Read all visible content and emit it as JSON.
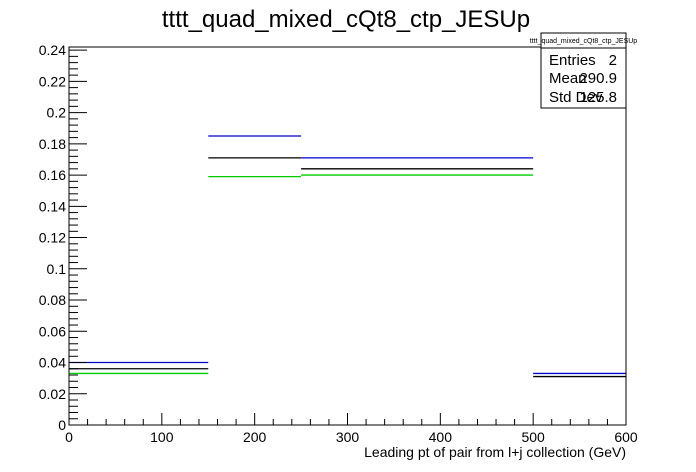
{
  "chart_data": {
    "type": "histogram",
    "title": "tttt_quad_mixed_cQt8_ctp_JESUp",
    "xlabel": "Leading pt of pair from l+j collection (GeV)",
    "ylabel": "",
    "xlim": [
      0,
      600
    ],
    "ylim": [
      0,
      0.242
    ],
    "x_ticks": [
      0,
      100,
      200,
      300,
      400,
      500,
      600
    ],
    "x_tick_labels": [
      "0",
      "100",
      "200",
      "300",
      "400",
      "500",
      "600"
    ],
    "y_ticks": [
      0,
      0.02,
      0.04,
      0.06,
      0.08,
      0.1,
      0.12,
      0.14,
      0.16,
      0.18,
      0.2,
      0.22,
      0.24
    ],
    "y_tick_labels": [
      "0",
      "0.02",
      "0.04",
      "0.06",
      "0.08",
      "0.1",
      "0.12",
      "0.14",
      "0.16",
      "0.18",
      "0.2",
      "0.22",
      "0.24"
    ],
    "bin_edges": [
      0,
      150,
      250,
      500,
      600
    ],
    "series": [
      {
        "color": "#0000cc",
        "values": [
          0.04,
          0.185,
          0.171,
          0.033
        ]
      },
      {
        "color": "#000000",
        "values": [
          0.036,
          0.171,
          0.164,
          0.031
        ]
      },
      {
        "color": "#00cc00",
        "values": [
          0.033,
          0.159,
          0.16,
          null
        ]
      }
    ],
    "grid": false,
    "legend": "none"
  },
  "stats_box": {
    "title": "tttt_quad_mixed_cQt8_ctp_JESUp",
    "rows": [
      {
        "label": "Entries",
        "value": "2"
      },
      {
        "label": "Mean",
        "value": "290.9"
      },
      {
        "label": "Std Dev",
        "value": "125.8"
      }
    ]
  }
}
